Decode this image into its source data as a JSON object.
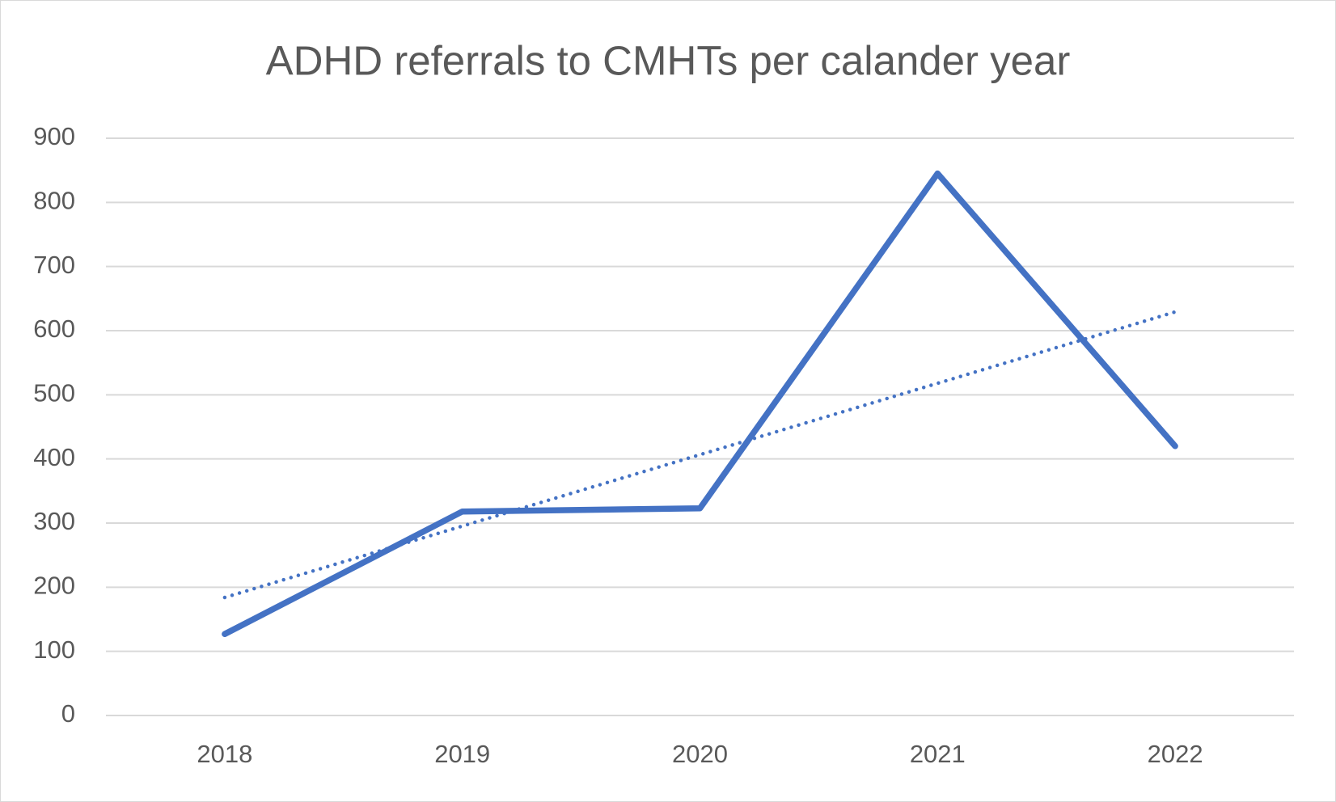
{
  "chart_data": {
    "type": "line",
    "title": "ADHD referrals to CMHTs per calander year",
    "categories": [
      "2018",
      "2019",
      "2020",
      "2021",
      "2022"
    ],
    "values": [
      127,
      318,
      323,
      845,
      420
    ],
    "color": "#4472c4",
    "trendline": "linear",
    "ylim": [
      0,
      900
    ],
    "yticks": [
      0,
      100,
      200,
      300,
      400,
      500,
      600,
      700,
      800,
      900
    ],
    "grid": true
  }
}
